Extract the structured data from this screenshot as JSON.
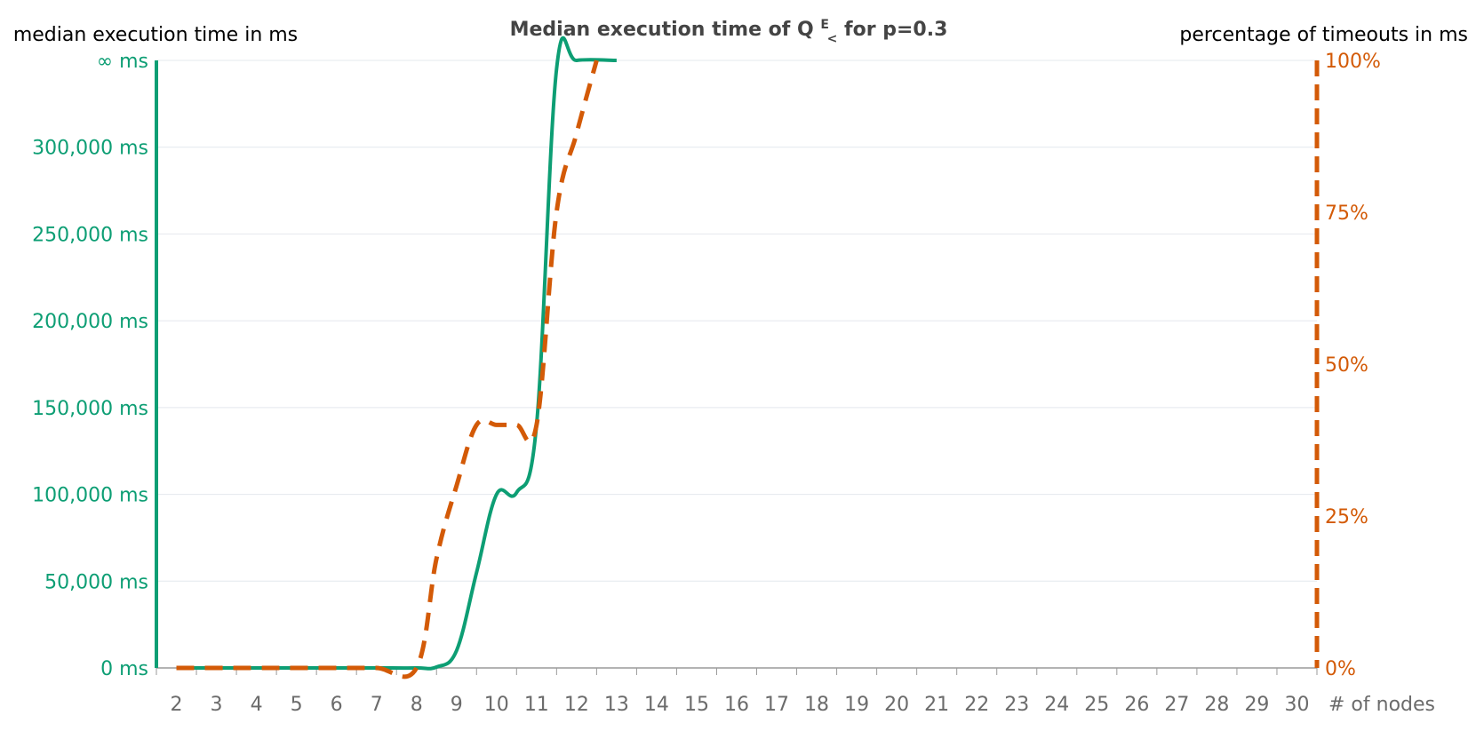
{
  "chart_data": {
    "type": "line",
    "title": "Median execution time of Q",
    "title_sup": "E",
    "title_sub": "<",
    "title_suffix": " for p=0.3",
    "y_left_label": "median execution time in ms",
    "y_right_label": "percentage of timeouts in ms",
    "x_label": "# of nodes",
    "x": [
      2,
      3,
      4,
      5,
      6,
      7,
      8,
      9,
      10,
      11,
      12,
      13,
      14,
      15,
      16,
      17,
      18,
      19,
      20,
      21,
      22,
      23,
      24,
      25,
      26,
      27,
      28,
      29,
      30
    ],
    "x_ticks": [
      "2",
      "3",
      "4",
      "5",
      "6",
      "7",
      "8",
      "9",
      "10",
      "11",
      "12",
      "13",
      "14",
      "15",
      "16",
      "17",
      "18",
      "19",
      "20",
      "21",
      "22",
      "23",
      "24",
      "25",
      "26",
      "27",
      "28",
      "29",
      "30"
    ],
    "y_left_ticks": [
      {
        "v": 0,
        "label": "0 ms"
      },
      {
        "v": 50000,
        "label": "50,000 ms"
      },
      {
        "v": 100000,
        "label": "100,000 ms"
      },
      {
        "v": 150000,
        "label": "150,000 ms"
      },
      {
        "v": 200000,
        "label": "200,000 ms"
      },
      {
        "v": 250000,
        "label": "250,000 ms"
      },
      {
        "v": 300000,
        "label": "300,000 ms"
      },
      {
        "v": 350000,
        "label": "∞ ms"
      }
    ],
    "y_left_range": [
      0,
      350000
    ],
    "y_right_ticks": [
      {
        "v": 0,
        "label": "0%"
      },
      {
        "v": 25,
        "label": "25%"
      },
      {
        "v": 50,
        "label": "50%"
      },
      {
        "v": 75,
        "label": "75%"
      },
      {
        "v": 100,
        "label": "100%"
      }
    ],
    "y_right_range": [
      0,
      100
    ],
    "series": [
      {
        "axis": "left",
        "style": "solid",
        "color": "#0d9e74",
        "points": [
          [
            2,
            0
          ],
          [
            3,
            0
          ],
          [
            4,
            0
          ],
          [
            5,
            0
          ],
          [
            6,
            0
          ],
          [
            7,
            0
          ],
          [
            8,
            0
          ],
          [
            8.5,
            500
          ],
          [
            9,
            10000
          ],
          [
            9.5,
            55000
          ],
          [
            10,
            100000
          ],
          [
            10.5,
            101000
          ],
          [
            11,
            140000
          ],
          [
            11.5,
            345000
          ],
          [
            12,
            350000
          ],
          [
            13,
            350000
          ]
        ]
      },
      {
        "axis": "right",
        "style": "dashed",
        "color": "#d35a07",
        "points": [
          [
            2,
            0
          ],
          [
            3,
            0
          ],
          [
            4,
            0
          ],
          [
            5,
            0
          ],
          [
            6,
            0
          ],
          [
            7,
            0
          ],
          [
            8,
            0
          ],
          [
            8.5,
            18
          ],
          [
            9,
            30
          ],
          [
            9.5,
            40
          ],
          [
            10,
            40
          ],
          [
            10.5,
            40
          ],
          [
            11,
            40
          ],
          [
            11.5,
            75
          ],
          [
            12,
            88
          ],
          [
            12.5,
            100
          ]
        ]
      }
    ],
    "grid": true
  }
}
